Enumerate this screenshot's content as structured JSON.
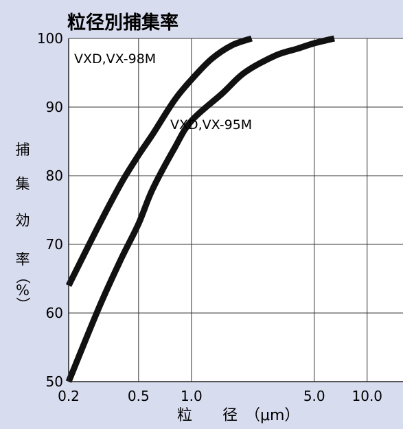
{
  "chart_data": {
    "type": "line",
    "title": "粒径別捕集率",
    "xlabel": "粒　　径　（μm）",
    "ylabel": [
      "捕",
      "集",
      "効",
      "率",
      "（",
      "%",
      "）"
    ],
    "x_scale": "log",
    "xlim": [
      0.2,
      16
    ],
    "ylim": [
      50,
      100
    ],
    "x_ticks": [
      0.2,
      0.5,
      1.0,
      5.0,
      10.0
    ],
    "x_tick_labels": [
      "0.2",
      "0.5",
      "1.0",
      "5.0",
      "10.0"
    ],
    "y_ticks": [
      50,
      60,
      70,
      80,
      90,
      100
    ],
    "y_tick_labels": [
      "50",
      "60",
      "70",
      "80",
      "90",
      "100"
    ],
    "grid": true,
    "series": [
      {
        "name": "VXD,VX-98M",
        "x": [
          0.2,
          0.3,
          0.4,
          0.5,
          0.6,
          0.8,
          1.0,
          1.3,
          1.7,
          2.2
        ],
        "y": [
          64,
          73,
          79,
          83,
          86,
          91,
          94,
          97,
          99,
          100
        ]
      },
      {
        "name": "VXD,VX-95M",
        "x": [
          0.2,
          0.3,
          0.4,
          0.5,
          0.6,
          0.8,
          1.0,
          1.5,
          2.0,
          3.0,
          4.0,
          5.0,
          6.5
        ],
        "y": [
          50,
          61,
          68,
          73,
          78,
          84,
          88,
          92,
          95,
          97.5,
          98.5,
          99.3,
          100
        ]
      }
    ]
  }
}
